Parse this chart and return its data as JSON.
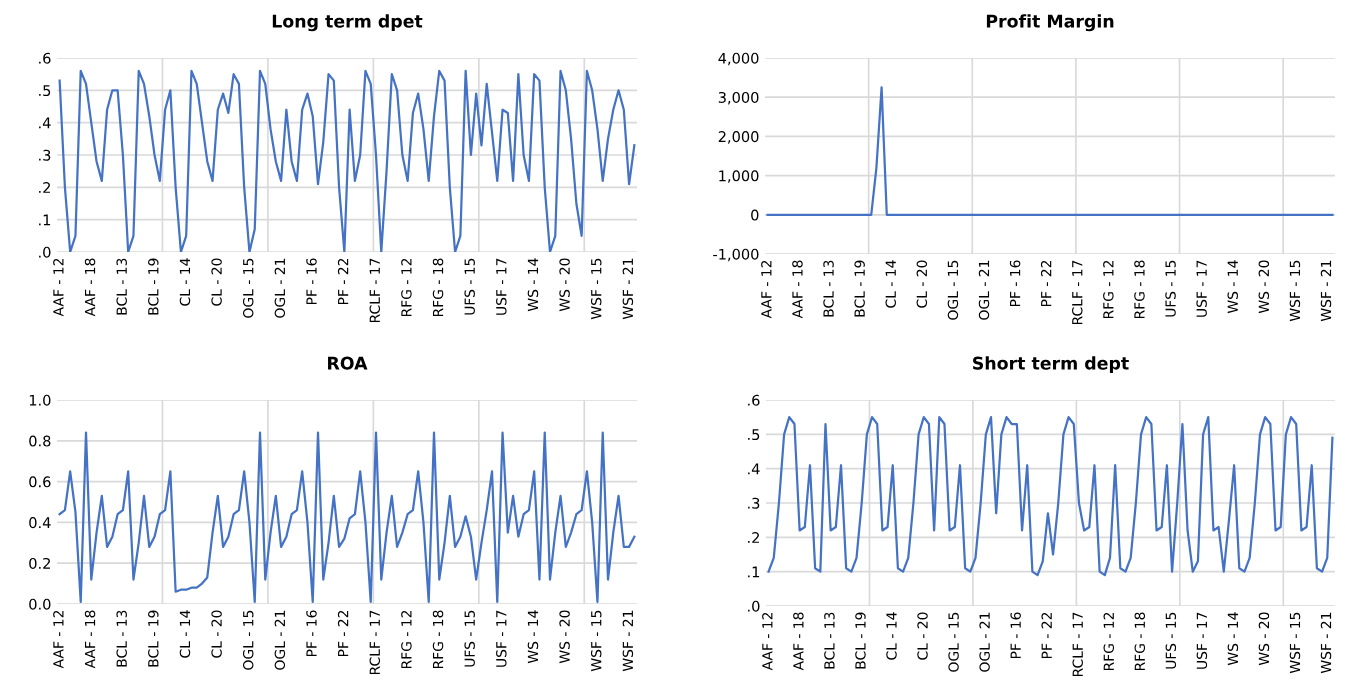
{
  "chart_data": [
    {
      "type": "line",
      "title": "Long term dpet",
      "color": "#4472c4",
      "grid": true,
      "marker": "none",
      "categories": [
        "AAF - 12",
        null,
        null,
        null,
        null,
        null,
        "AAF - 18",
        null,
        null,
        null,
        null,
        null,
        "BCL - 13",
        null,
        null,
        null,
        null,
        null,
        "BCL - 19",
        null,
        null,
        null,
        null,
        null,
        "CL - 14",
        null,
        null,
        null,
        null,
        null,
        "CL - 20",
        null,
        null,
        null,
        null,
        null,
        "OGL - 15",
        null,
        null,
        null,
        null,
        null,
        "OGL - 21",
        null,
        null,
        null,
        null,
        null,
        "PF - 16",
        null,
        null,
        null,
        null,
        null,
        "PF - 22",
        null,
        null,
        null,
        null,
        null,
        "RCLF - 17",
        null,
        null,
        null,
        null,
        null,
        "RFG - 12",
        null,
        null,
        null,
        null,
        null,
        "RFG - 18",
        null,
        null,
        null,
        null,
        null,
        "UFS - 15",
        null,
        null,
        null,
        null,
        null,
        "USF - 17",
        null,
        null,
        null,
        null,
        null,
        "WS - 14",
        null,
        null,
        null,
        null,
        null,
        "WS - 20",
        null,
        null,
        null,
        null,
        null,
        "WSF - 15",
        null,
        null,
        null,
        null,
        null,
        "WSF - 21",
        null
      ],
      "values": [
        0.53,
        0.2,
        0,
        0.05,
        0.56,
        0.52,
        0.4,
        0.28,
        0.22,
        0.44,
        0.5,
        0.5,
        0.3,
        0,
        0.05,
        0.56,
        0.52,
        0.42,
        0.3,
        0.22,
        0.44,
        0.5,
        0.2,
        0,
        0.05,
        0.56,
        0.52,
        0.4,
        0.28,
        0.22,
        0.44,
        0.49,
        0.43,
        0.55,
        0.52,
        0.2,
        0,
        0.07,
        0.56,
        0.52,
        0.38,
        0.28,
        0.22,
        0.44,
        0.28,
        0.22,
        0.44,
        0.49,
        0.42,
        0.21,
        0.34,
        0.55,
        0.53,
        0.2,
        0,
        0.44,
        0.22,
        0.3,
        0.56,
        0.52,
        0.3,
        0,
        0.25,
        0.55,
        0.5,
        0.3,
        0.22,
        0.43,
        0.49,
        0.38,
        0.22,
        0.42,
        0.56,
        0.53,
        0.2,
        0,
        0.05,
        0.56,
        0.3,
        0.49,
        0.33,
        0.52,
        0.37,
        0.22,
        0.44,
        0.43,
        0.22,
        0.55,
        0.3,
        0.22,
        0.55,
        0.53,
        0.2,
        0,
        0.05,
        0.56,
        0.5,
        0.35,
        0.15,
        0.05,
        0.56,
        0.5,
        0.38,
        0.22,
        0.35,
        0.44,
        0.5,
        0.44,
        0.21,
        0.33
      ],
      "ylim": [
        0,
        0.6
      ],
      "yticks": [
        {
          "value": 0,
          "label": ".0"
        },
        {
          "value": 0.1,
          "label": ".1"
        },
        {
          "value": 0.2,
          "label": ".2"
        },
        {
          "value": 0.3,
          "label": ".3"
        },
        {
          "value": 0.4,
          "label": ".4"
        },
        {
          "value": 0.5,
          "label": ".5"
        },
        {
          "value": 0.6,
          "label": ".6"
        }
      ]
    },
    {
      "type": "line",
      "title": "Profit Margin",
      "color": "#4472c4",
      "grid": true,
      "marker": "none",
      "categories": [
        "AAF - 12",
        null,
        null,
        null,
        null,
        null,
        "AAF - 18",
        null,
        null,
        null,
        null,
        null,
        "BCL - 13",
        null,
        null,
        null,
        null,
        null,
        "BCL - 19",
        null,
        null,
        null,
        null,
        null,
        "CL - 14",
        null,
        null,
        null,
        null,
        null,
        "CL - 20",
        null,
        null,
        null,
        null,
        null,
        "OGL - 15",
        null,
        null,
        null,
        null,
        null,
        "OGL - 21",
        null,
        null,
        null,
        null,
        null,
        "PF - 16",
        null,
        null,
        null,
        null,
        null,
        "PF - 22",
        null,
        null,
        null,
        null,
        null,
        "RCLF - 17",
        null,
        null,
        null,
        null,
        null,
        "RFG - 12",
        null,
        null,
        null,
        null,
        null,
        "RFG - 18",
        null,
        null,
        null,
        null,
        null,
        "UFS - 15",
        null,
        null,
        null,
        null,
        null,
        "USF - 17",
        null,
        null,
        null,
        null,
        null,
        "WS - 14",
        null,
        null,
        null,
        null,
        null,
        "WS - 20",
        null,
        null,
        null,
        null,
        null,
        "WSF - 15",
        null,
        null,
        null,
        null,
        null,
        "WSF - 21",
        null
      ],
      "values": [
        0,
        0,
        0,
        0,
        0,
        0,
        0,
        0,
        0,
        0,
        0,
        0,
        0,
        0,
        0,
        0,
        0,
        0,
        0,
        0,
        0,
        1200,
        3250,
        0,
        0,
        0,
        0,
        0,
        0,
        0,
        0,
        0,
        0,
        0,
        0,
        0,
        0,
        0,
        0,
        0,
        0,
        0,
        0,
        0,
        0,
        0,
        0,
        0,
        0,
        0,
        0,
        0,
        0,
        0,
        0,
        0,
        0,
        0,
        0,
        0,
        0,
        0,
        0,
        0,
        0,
        0,
        0,
        0,
        0,
        0,
        0,
        0,
        0,
        0,
        0,
        0,
        0,
        0,
        0,
        0,
        0,
        0,
        0,
        0,
        0,
        0,
        0,
        0,
        0,
        0,
        0,
        0,
        0,
        0,
        0,
        0,
        0,
        0,
        0,
        0,
        0,
        0,
        0,
        0,
        0,
        0,
        0,
        0,
        0,
        0
      ],
      "ylim": [
        -1000,
        4000
      ],
      "yticks": [
        {
          "value": -1000,
          "label": "-1,000"
        },
        {
          "value": 0,
          "label": "0"
        },
        {
          "value": 1000,
          "label": "1,000"
        },
        {
          "value": 2000,
          "label": "2,000"
        },
        {
          "value": 3000,
          "label": "3,000"
        },
        {
          "value": 4000,
          "label": "4,000"
        }
      ]
    },
    {
      "type": "line",
      "title": "ROA",
      "color": "#4472c4",
      "grid": true,
      "marker": "none",
      "categories": [
        "AAF - 12",
        null,
        null,
        null,
        null,
        null,
        "AAF - 18",
        null,
        null,
        null,
        null,
        null,
        "BCL - 13",
        null,
        null,
        null,
        null,
        null,
        "BCL - 19",
        null,
        null,
        null,
        null,
        null,
        "CL - 14",
        null,
        null,
        null,
        null,
        null,
        "CL - 20",
        null,
        null,
        null,
        null,
        null,
        "OGL - 15",
        null,
        null,
        null,
        null,
        null,
        "OGL - 21",
        null,
        null,
        null,
        null,
        null,
        "PF - 16",
        null,
        null,
        null,
        null,
        null,
        "PF - 22",
        null,
        null,
        null,
        null,
        null,
        "RCLF - 17",
        null,
        null,
        null,
        null,
        null,
        "RFG - 12",
        null,
        null,
        null,
        null,
        null,
        "RFG - 18",
        null,
        null,
        null,
        null,
        null,
        "UFS - 15",
        null,
        null,
        null,
        null,
        null,
        "USF - 17",
        null,
        null,
        null,
        null,
        null,
        "WS - 14",
        null,
        null,
        null,
        null,
        null,
        "WS - 20",
        null,
        null,
        null,
        null,
        null,
        "WSF - 15",
        null,
        null,
        null,
        null,
        null,
        "WSF - 21",
        null
      ],
      "values": [
        0.44,
        0.46,
        0.65,
        0.45,
        0.01,
        0.84,
        0.12,
        0.35,
        0.53,
        0.28,
        0.33,
        0.44,
        0.46,
        0.65,
        0.12,
        0.3,
        0.53,
        0.28,
        0.33,
        0.44,
        0.46,
        0.65,
        0.06,
        0.07,
        0.07,
        0.08,
        0.08,
        0.1,
        0.13,
        0.35,
        0.53,
        0.28,
        0.33,
        0.44,
        0.46,
        0.65,
        0.4,
        0.01,
        0.84,
        0.12,
        0.35,
        0.53,
        0.28,
        0.33,
        0.44,
        0.46,
        0.65,
        0.4,
        0.01,
        0.84,
        0.12,
        0.3,
        0.53,
        0.28,
        0.32,
        0.42,
        0.44,
        0.65,
        0.4,
        0.01,
        0.84,
        0.12,
        0.35,
        0.53,
        0.28,
        0.35,
        0.44,
        0.46,
        0.65,
        0.4,
        0.01,
        0.84,
        0.12,
        0.3,
        0.53,
        0.28,
        0.33,
        0.43,
        0.33,
        0.12,
        0.3,
        0.46,
        0.65,
        0.01,
        0.84,
        0.35,
        0.53,
        0.33,
        0.44,
        0.46,
        0.65,
        0.12,
        0.84,
        0.12,
        0.35,
        0.53,
        0.28,
        0.35,
        0.44,
        0.46,
        0.65,
        0.4,
        0.01,
        0.84,
        0.12,
        0.35,
        0.53,
        0.28,
        0.28,
        0.33
      ],
      "ylim": [
        0,
        1.0
      ],
      "yticks": [
        {
          "value": 0,
          "label": "0.0"
        },
        0.2,
        0.4,
        0.6,
        0.8,
        {
          "value": 1,
          "label": "1.0"
        }
      ]
    },
    {
      "type": "line",
      "title": "Short term dept",
      "color": "#4472c4",
      "grid": true,
      "marker": "none",
      "categories": [
        "AAF - 12",
        null,
        null,
        null,
        null,
        null,
        "AAF - 18",
        null,
        null,
        null,
        null,
        null,
        "BCL - 13",
        null,
        null,
        null,
        null,
        null,
        "BCL - 19",
        null,
        null,
        null,
        null,
        null,
        "CL - 14",
        null,
        null,
        null,
        null,
        null,
        "CL - 20",
        null,
        null,
        null,
        null,
        null,
        "OGL - 15",
        null,
        null,
        null,
        null,
        null,
        "OGL - 21",
        null,
        null,
        null,
        null,
        null,
        "PF - 16",
        null,
        null,
        null,
        null,
        null,
        "PF - 22",
        null,
        null,
        null,
        null,
        null,
        "RCLF - 17",
        null,
        null,
        null,
        null,
        null,
        "RFG - 12",
        null,
        null,
        null,
        null,
        null,
        "RFG - 18",
        null,
        null,
        null,
        null,
        null,
        "UFS - 15",
        null,
        null,
        null,
        null,
        null,
        "USF - 17",
        null,
        null,
        null,
        null,
        null,
        "WS - 14",
        null,
        null,
        null,
        null,
        null,
        "WS - 20",
        null,
        null,
        null,
        null,
        null,
        "WSF - 15",
        null,
        null,
        null,
        null,
        null,
        "WSF - 21",
        null
      ],
      "values": [
        0.1,
        0.14,
        0.3,
        0.5,
        0.55,
        0.53,
        0.22,
        0.23,
        0.41,
        0.11,
        0.1,
        0.53,
        0.22,
        0.23,
        0.41,
        0.11,
        0.1,
        0.14,
        0.3,
        0.5,
        0.55,
        0.53,
        0.22,
        0.23,
        0.41,
        0.11,
        0.1,
        0.14,
        0.3,
        0.5,
        0.55,
        0.53,
        0.22,
        0.55,
        0.53,
        0.22,
        0.23,
        0.41,
        0.11,
        0.1,
        0.14,
        0.3,
        0.5,
        0.55,
        0.27,
        0.5,
        0.55,
        0.53,
        0.53,
        0.22,
        0.41,
        0.1,
        0.09,
        0.13,
        0.27,
        0.15,
        0.3,
        0.5,
        0.55,
        0.53,
        0.3,
        0.22,
        0.23,
        0.41,
        0.1,
        0.09,
        0.14,
        0.41,
        0.11,
        0.1,
        0.14,
        0.3,
        0.5,
        0.55,
        0.53,
        0.22,
        0.23,
        0.41,
        0.1,
        0.3,
        0.53,
        0.22,
        0.1,
        0.13,
        0.5,
        0.55,
        0.22,
        0.23,
        0.1,
        0.25,
        0.41,
        0.11,
        0.1,
        0.14,
        0.3,
        0.5,
        0.55,
        0.53,
        0.22,
        0.23,
        0.5,
        0.55,
        0.53,
        0.22,
        0.23,
        0.41,
        0.11,
        0.1,
        0.14,
        0.49
      ],
      "ylim": [
        0,
        0.6
      ],
      "yticks": [
        {
          "value": 0,
          "label": ".0"
        },
        {
          "value": 0.1,
          "label": ".1"
        },
        {
          "value": 0.2,
          "label": ".2"
        },
        {
          "value": 0.3,
          "label": ".3"
        },
        {
          "value": 0.4,
          "label": ".4"
        },
        {
          "value": 0.5,
          "label": ".5"
        },
        {
          "value": 0.6,
          "label": ".6"
        }
      ]
    }
  ]
}
